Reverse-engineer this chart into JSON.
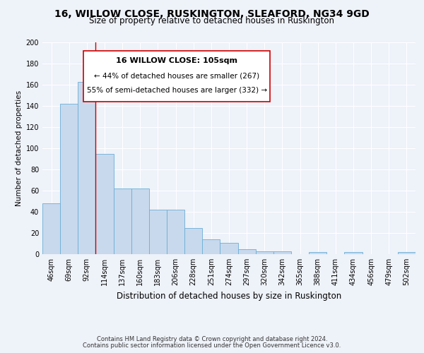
{
  "title": "16, WILLOW CLOSE, RUSKINGTON, SLEAFORD, NG34 9GD",
  "subtitle": "Size of property relative to detached houses in Ruskington",
  "xlabel": "Distribution of detached houses by size in Ruskington",
  "ylabel": "Number of detached properties",
  "bar_labels": [
    "46sqm",
    "69sqm",
    "92sqm",
    "114sqm",
    "137sqm",
    "160sqm",
    "183sqm",
    "206sqm",
    "228sqm",
    "251sqm",
    "274sqm",
    "297sqm",
    "320sqm",
    "342sqm",
    "365sqm",
    "388sqm",
    "411sqm",
    "434sqm",
    "456sqm",
    "479sqm",
    "502sqm"
  ],
  "bar_values": [
    48,
    142,
    163,
    95,
    62,
    62,
    42,
    42,
    25,
    14,
    11,
    5,
    3,
    3,
    0,
    2,
    0,
    2,
    0,
    0,
    2
  ],
  "bar_color": "#c8d9ed",
  "bar_edgecolor": "#6aaed6",
  "ylim": [
    0,
    200
  ],
  "yticks": [
    0,
    20,
    40,
    60,
    80,
    100,
    120,
    140,
    160,
    180,
    200
  ],
  "vline_x": 2.5,
  "vline_color": "#cc0000",
  "annotation_title": "16 WILLOW CLOSE: 105sqm",
  "annotation_line1": "← 44% of detached houses are smaller (267)",
  "annotation_line2": "55% of semi-detached houses are larger (332) →",
  "footer_line1": "Contains HM Land Registry data © Crown copyright and database right 2024.",
  "footer_line2": "Contains public sector information licensed under the Open Government Licence v3.0.",
  "bg_color": "#eef2f9",
  "grid_color": "#ffffff",
  "title_fontsize": 10,
  "subtitle_fontsize": 8.5,
  "xlabel_fontsize": 8.5,
  "ylabel_fontsize": 7.5,
  "tick_fontsize": 7,
  "footer_fontsize": 6,
  "ann_title_fontsize": 8,
  "ann_text_fontsize": 7.5
}
